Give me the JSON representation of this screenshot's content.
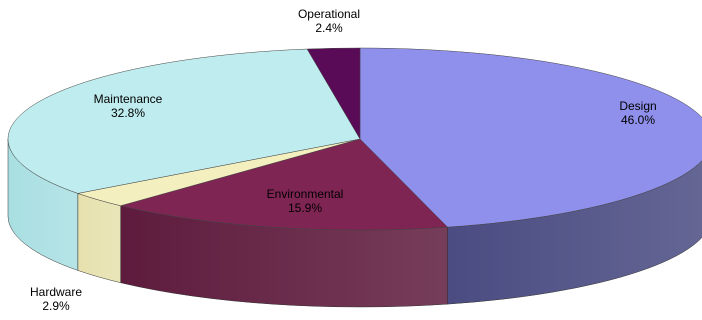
{
  "chart_data": {
    "type": "pie",
    "three_d": true,
    "legend": "none",
    "slices": [
      {
        "label": "Design",
        "value": 46.0,
        "value_label": "46.0%",
        "color": "#8f8fec",
        "side_color": "#4a4c82"
      },
      {
        "label": "Environmental",
        "value": 15.9,
        "value_label": "15.9%",
        "color": "#7f2553",
        "side_color": "#5e1b3d"
      },
      {
        "label": "Hardware",
        "value": 2.9,
        "value_label": "2.9%",
        "color": "#f3efbf",
        "side_color": "#e6e1ad"
      },
      {
        "label": "Maintenance",
        "value": 32.8,
        "value_label": "32.8%",
        "color": "#bfecee",
        "side_color": "#a9dfe2"
      },
      {
        "label": "Operational",
        "value": 2.4,
        "value_label": "2.4%",
        "color": "#5a0b57",
        "side_color": "#3d073b"
      }
    ]
  }
}
